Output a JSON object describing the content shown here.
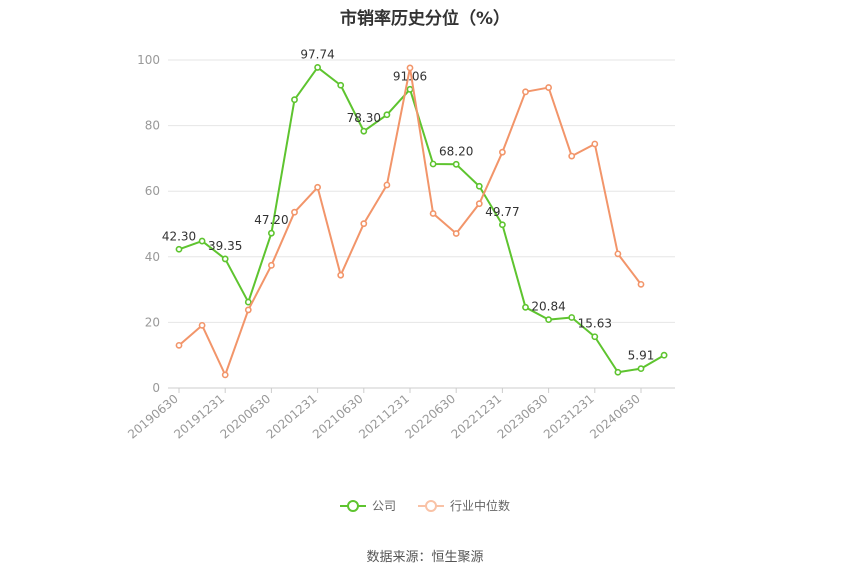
{
  "chart_data": {
    "type": "line",
    "title": "市销率历史分位（%）",
    "ylim": [
      0,
      100
    ],
    "yticks": [
      0,
      20,
      40,
      60,
      80,
      100
    ],
    "x_tick_labels": [
      "20190630",
      "20191231",
      "20200630",
      "20201231",
      "20210630",
      "20211231",
      "20220630",
      "20221231",
      "20230630",
      "20231231",
      "20240630"
    ],
    "x": [
      "20190630",
      "20190930",
      "20191231",
      "20200331",
      "20200630",
      "20200930",
      "20201231",
      "20210331",
      "20210630",
      "20210930",
      "20211231",
      "20220331",
      "20220630",
      "20220930",
      "20221231",
      "20230331",
      "20230630",
      "20230930",
      "20231231",
      "20240331",
      "20240630",
      "20240930"
    ],
    "series": [
      {
        "name": "公司",
        "color": "#5ec42f",
        "values": [
          42.3,
          44.8,
          39.35,
          26.2,
          47.2,
          87.9,
          97.74,
          92.3,
          78.3,
          83.3,
          91.06,
          68.3,
          68.2,
          61.5,
          49.77,
          24.6,
          20.84,
          21.5,
          15.63,
          4.8,
          5.91,
          10.0
        ],
        "labels": {
          "0": "42.30",
          "2": "39.35",
          "4": "47.20",
          "6": "97.74",
          "8": "78.30",
          "10": "91.06",
          "12": "68.20",
          "14": "49.77",
          "16": "20.84",
          "18": "15.63",
          "20": "5.91"
        }
      },
      {
        "name": "行业中位数",
        "color": "#f2956a",
        "values": [
          13.0,
          19.1,
          4.0,
          23.8,
          37.4,
          53.6,
          61.2,
          34.4,
          50.1,
          61.9,
          97.6,
          53.2,
          47.1,
          56.2,
          71.9,
          90.3,
          91.6,
          70.7,
          74.4,
          40.9,
          31.6,
          null
        ]
      }
    ],
    "legend_position": "bottom-center",
    "grid": true
  },
  "source": "数据来源：恒生聚源"
}
